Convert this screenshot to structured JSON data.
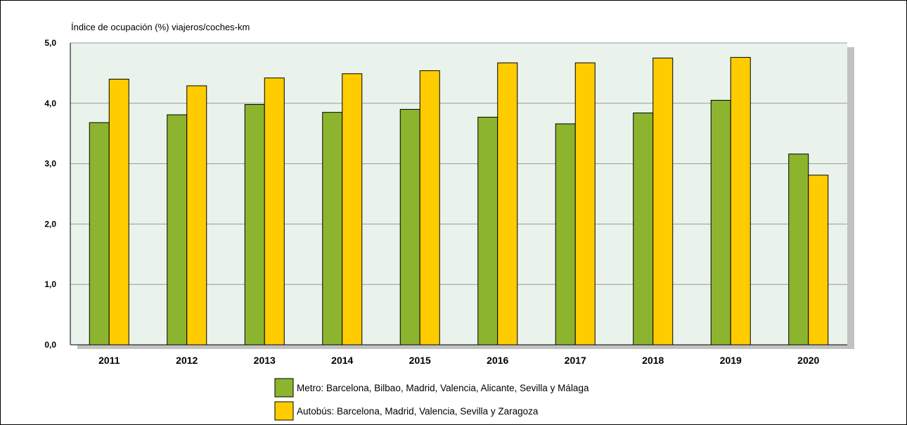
{
  "chart_data": {
    "type": "bar",
    "ylabel": "Índice de ocupación (%) viajeros/coches-km",
    "categories": [
      "2011",
      "2012",
      "2013",
      "2014",
      "2015",
      "2016",
      "2017",
      "2018",
      "2019",
      "2020"
    ],
    "ylim": [
      0,
      5
    ],
    "yticks": [
      "0,0",
      "1,0",
      "2,0",
      "3,0",
      "4,0",
      "5,0"
    ],
    "grid": true,
    "legend_position": "bottom",
    "series": [
      {
        "name": "Metro: Barcelona, Bilbao, Madrid, Valencia, Alicante, Sevilla y Málaga",
        "values": [
          3.68,
          3.81,
          3.98,
          3.85,
          3.9,
          3.77,
          3.66,
          3.84,
          4.05,
          3.16
        ],
        "color": "#8db42e"
      },
      {
        "name": "Autobús: Barcelona, Madrid, Valencia, Sevilla y Zaragoza",
        "values": [
          4.4,
          4.29,
          4.42,
          4.49,
          4.54,
          4.67,
          4.67,
          4.75,
          4.76,
          2.81
        ],
        "color": "#ffcc00"
      }
    ],
    "colors": {
      "plot_background": "#e9f3ec",
      "plot_shadow": "#c2c2c2",
      "gridline": "#9a9a9a"
    }
  }
}
